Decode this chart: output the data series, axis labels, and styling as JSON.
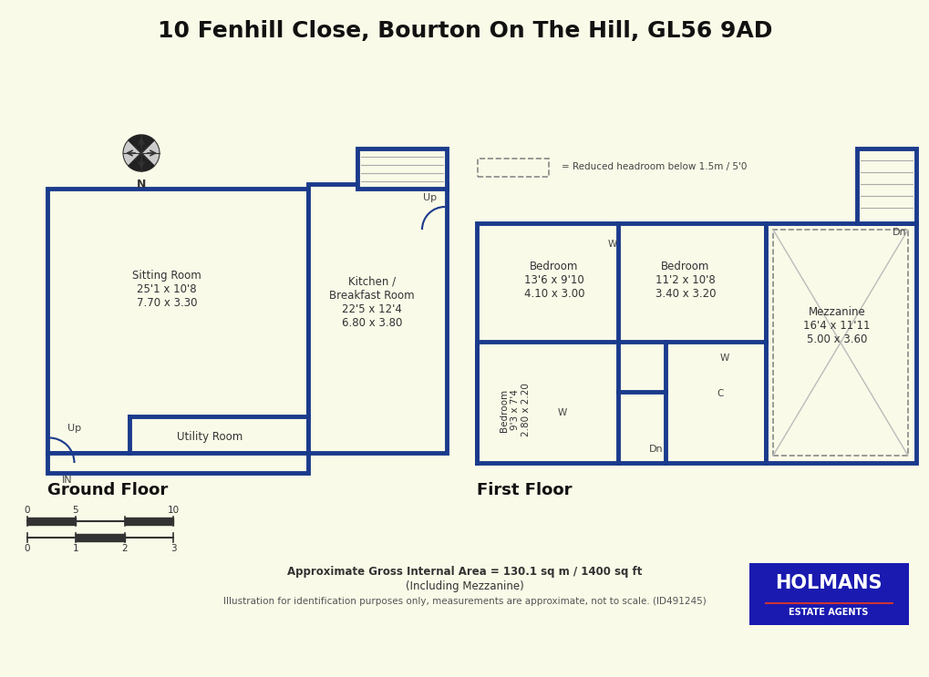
{
  "title": "10 Fenhill Close, Bourton On The Hill, GL56 9AD",
  "background_color": "#FAFAE8",
  "wall_color": "#1a3a8c",
  "inner_fill": "#fafae8",
  "title_fontsize": 18,
  "label_fontsize": 8.5,
  "heading_fontsize": 13,
  "bottom_text1": "Approximate Gross Internal Area = 130.1 sq m / 1400 sq ft",
  "bottom_text2": "(Including Mezzanine)",
  "bottom_text3": "Illustration for identification purposes only, measurements are approximate, not to scale. (ID491245)",
  "ground_floor_label": "Ground Floor",
  "first_floor_label": "First Floor",
  "holmans_text": "HOLMANS",
  "holmans_sub": "ESTATE AGENTS",
  "holmans_bg": "#1a1ab0",
  "reduced_headroom_note": "= Reduced headroom below 1.5m / 5'0"
}
